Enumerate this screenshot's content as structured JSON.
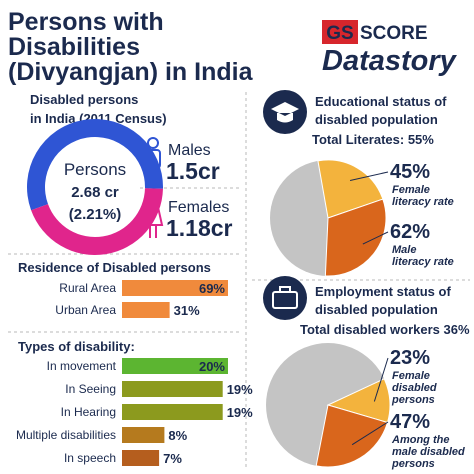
{
  "header": {
    "title": [
      "Persons with",
      "Disabilities",
      "(Divyangjan) in India"
    ],
    "logo": {
      "badge": "GS",
      "brand": "SCORE",
      "name": "Datastory"
    }
  },
  "census": {
    "heading": [
      "Disabled persons",
      "in India (2011 Census)"
    ],
    "center": [
      "Persons",
      "2.68 cr",
      "(2.21%)"
    ],
    "groups": [
      {
        "name": "Males",
        "value": 1.5,
        "value_label": "1.5cr",
        "color": "#2f55d4"
      },
      {
        "name": "Females",
        "value": 1.18,
        "value_label": "1.18cr",
        "color": "#e0258c"
      }
    ]
  },
  "residence": {
    "title": "Residence of Disabled persons",
    "color": "#f08a3c",
    "rows": [
      {
        "label": "Rural Area",
        "value": 69,
        "value_label": "69%"
      },
      {
        "label": "Urban Area",
        "value": 31,
        "value_label": "31%"
      }
    ]
  },
  "types": {
    "title": "Types of disability:",
    "rows": [
      {
        "label": "In movement",
        "value": 20,
        "value_label": "20%",
        "color": "#5cb531"
      },
      {
        "label": "In Seeing",
        "value": 19,
        "value_label": "19%",
        "color": "#8c9a1e"
      },
      {
        "label": "In Hearing",
        "value": 19,
        "value_label": "19%",
        "color": "#8c9a1e"
      },
      {
        "label": "Multiple disabilities",
        "value": 8,
        "value_label": "8%",
        "color": "#b57a1e"
      },
      {
        "label": "In speech",
        "value": 7,
        "value_label": "7%",
        "color": "#b55e1e"
      }
    ]
  },
  "education": {
    "heading": [
      "Educational status of",
      "disabled population"
    ],
    "total": "Total Literates: 55%",
    "slices": [
      {
        "value": 45,
        "value_label": "45%",
        "label": [
          "Female",
          "literacy rate"
        ],
        "color": "#f3b33d"
      },
      {
        "value": 62,
        "value_label": "62%",
        "label": [
          "Male",
          "literacy rate"
        ],
        "color": "#d9661c"
      }
    ]
  },
  "employment": {
    "heading": [
      "Employment status of",
      "disabled population"
    ],
    "total": "Total disabled workers 36%",
    "slices": [
      {
        "value": 23,
        "value_label": "23%",
        "label": [
          "Female",
          "disabled",
          "persons"
        ],
        "color": "#f3b33d"
      },
      {
        "value": 47,
        "value_label": "47%",
        "label": [
          "Among the",
          "male disabled",
          "persons"
        ],
        "color": "#d9661c"
      }
    ]
  }
}
